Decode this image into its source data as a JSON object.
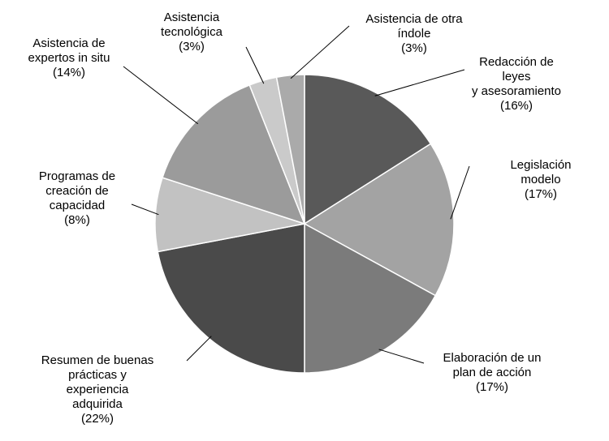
{
  "chart_data": {
    "type": "pie",
    "categories": [
      "Redacción de leyes\ny asesoramiento",
      "Legislación modelo",
      "Elaboración de un\nplan de acción",
      "Resumen de buenas\nprácticas y\nexperiencia\nadquirida",
      "Programas de\ncreación de\ncapacidad",
      "Asistencia de\nexpertos in situ",
      "Asistencia\ntecnológica",
      "Asistencia de otra\níndole"
    ],
    "values": [
      16,
      17,
      17,
      22,
      8,
      14,
      3,
      3
    ],
    "value_labels": [
      "(16%)",
      "(17%)",
      "(17%)",
      "(22%)",
      "(8%)",
      "(14%)",
      "(3%)",
      "(3%)"
    ],
    "colors": [
      "#595959",
      "#a3a3a3",
      "#7b7b7b",
      "#4a4a4a",
      "#c2c2c2",
      "#9b9b9b",
      "#cacaca",
      "#aaaaaa"
    ]
  }
}
